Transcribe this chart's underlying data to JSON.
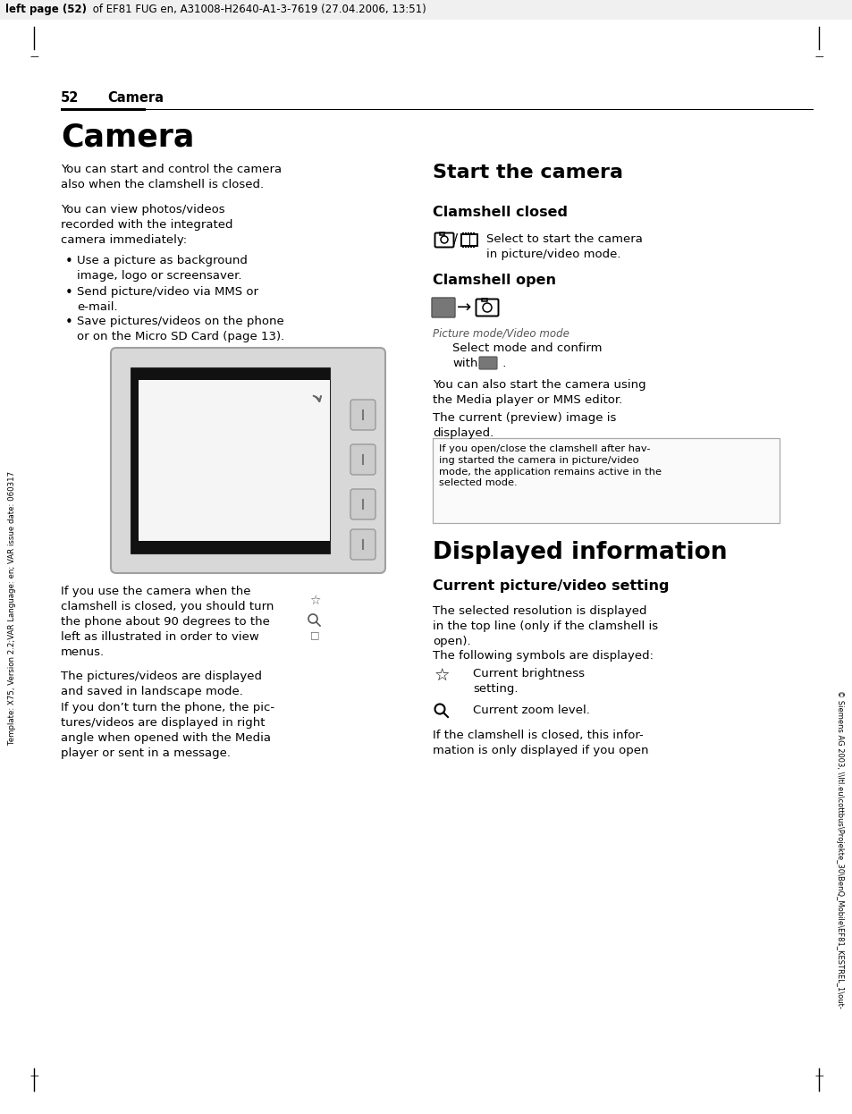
{
  "bg_color": "#ffffff",
  "header_text_bold": "left page (52)",
  "header_text_regular": " of EF81 FUG en, A31008-H2640-A1-3-7619 (27.04.2006, 13:51)",
  "page_num": "52",
  "page_chapter": "Camera",
  "section_title_camera": "Camera",
  "section_title_start": "Start the camera",
  "section_title_displayed": "Displayed information",
  "sub_clamshell_closed": "Clamshell closed",
  "sub_clamshell_open": "Clamshell open",
  "sub_current_pic": "Current picture/video setting",
  "left_col_text1": "You can start and control the camera\nalso when the clamshell is closed.",
  "left_col_text2": "You can view photos/videos\nrecorded with the integrated\ncamera immediately:",
  "bullet1": "Use a picture as background\nimage, logo or screensaver.",
  "bullet2": "Send picture/video via MMS or\ne-mail.",
  "bullet3": "Save pictures/videos on the phone\nor on the Micro SD Card (page 13).",
  "left_col_text3": "If you use the camera when the\nclamshell is closed, you should turn\nthe phone about 90 degrees to the\nleft as illustrated in order to view\nmenus.",
  "left_col_text4": "The pictures/videos are displayed\nand saved in landscape mode.",
  "left_col_text5": "If you don’t turn the phone, the pic-\ntures/videos are displayed in right\nangle when opened with the Media\nplayer or sent in a message.",
  "right_clamshell_closed_text": "Select to start the camera\nin picture/video mode.",
  "picture_mode_label": "Picture mode/Video mode",
  "right_text1": "You can also start the camera using\nthe Media player or MMS editor.",
  "right_text2": "The current (preview) image is\ndisplayed.",
  "note_text": "If you open/close the clamshell after hav-\ning started the camera in picture/video\nmode, the application remains active in the\nselected mode.",
  "disp_info_text": "The selected resolution is displayed\nin the top line (only if the clamshell is\nopen).",
  "disp_info_text2": "The following symbols are displayed:",
  "symbol1_text": "Current brightness\nsetting.",
  "symbol2_text": "Current zoom level.",
  "final_text": "If the clamshell is closed, this infor-\nmation is only displayed if you open",
  "side_text_left": "Template: X75, Version 2.2;VAR Language: en; VAR issue date: 060317",
  "side_text_right": "© Siemens AG 2003, \\\\ltl.eu\\cottbus\\Projekte_30\\BenQ_Mobile\\EF81_KESTREL_1\\out-"
}
